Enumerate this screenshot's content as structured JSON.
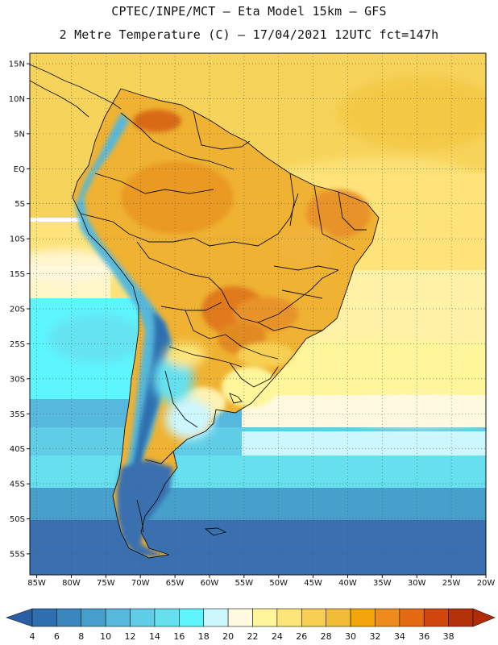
{
  "header": {
    "line1": "CPTEC/INPE/MCT –  Eta Model 15km – GFS",
    "line2": "2 Metre Temperature (C) – 17/04/2021 12UTC fct=147h"
  },
  "map": {
    "lat_labels": [
      "15N",
      "10N",
      "5N",
      "EQ",
      "5S",
      "10S",
      "15S",
      "20S",
      "25S",
      "30S",
      "35S",
      "40S",
      "45S",
      "50S",
      "55S"
    ],
    "lon_labels": [
      "85W",
      "80W",
      "75W",
      "70W",
      "65W",
      "60W",
      "55W",
      "50W",
      "45W",
      "40W",
      "35W",
      "30W",
      "25W",
      "20W"
    ],
    "lat_range": [
      -58,
      16.5
    ],
    "lon_range": [
      -86,
      -20
    ]
  },
  "colorbar": {
    "values": [
      "4",
      "6",
      "8",
      "10",
      "12",
      "14",
      "16",
      "18",
      "20",
      "22",
      "24",
      "26",
      "28",
      "30",
      "32",
      "34",
      "36",
      "38"
    ],
    "colors": [
      "#2f6faf",
      "#3a86bd",
      "#47a0cc",
      "#55b8dc",
      "#5fcde6",
      "#66e0ee",
      "#5df6ff",
      "#cdf7ff",
      "#fff9e0",
      "#fff59a",
      "#fde57a",
      "#f7d053",
      "#f0bc37",
      "#f2a40a",
      "#ee8a1e",
      "#e46a12",
      "#cf470a",
      "#b4320a"
    ],
    "under_color": "#2a5fa4",
    "over_color": "#b02c06"
  },
  "palette": {
    "ocean_tropic": "#f6d35a",
    "ocean_subtrop": "#fff1a6",
    "land_warm": "#efb232",
    "land_hot": "#e8932a",
    "andes_cold": "#2f6faf"
  }
}
